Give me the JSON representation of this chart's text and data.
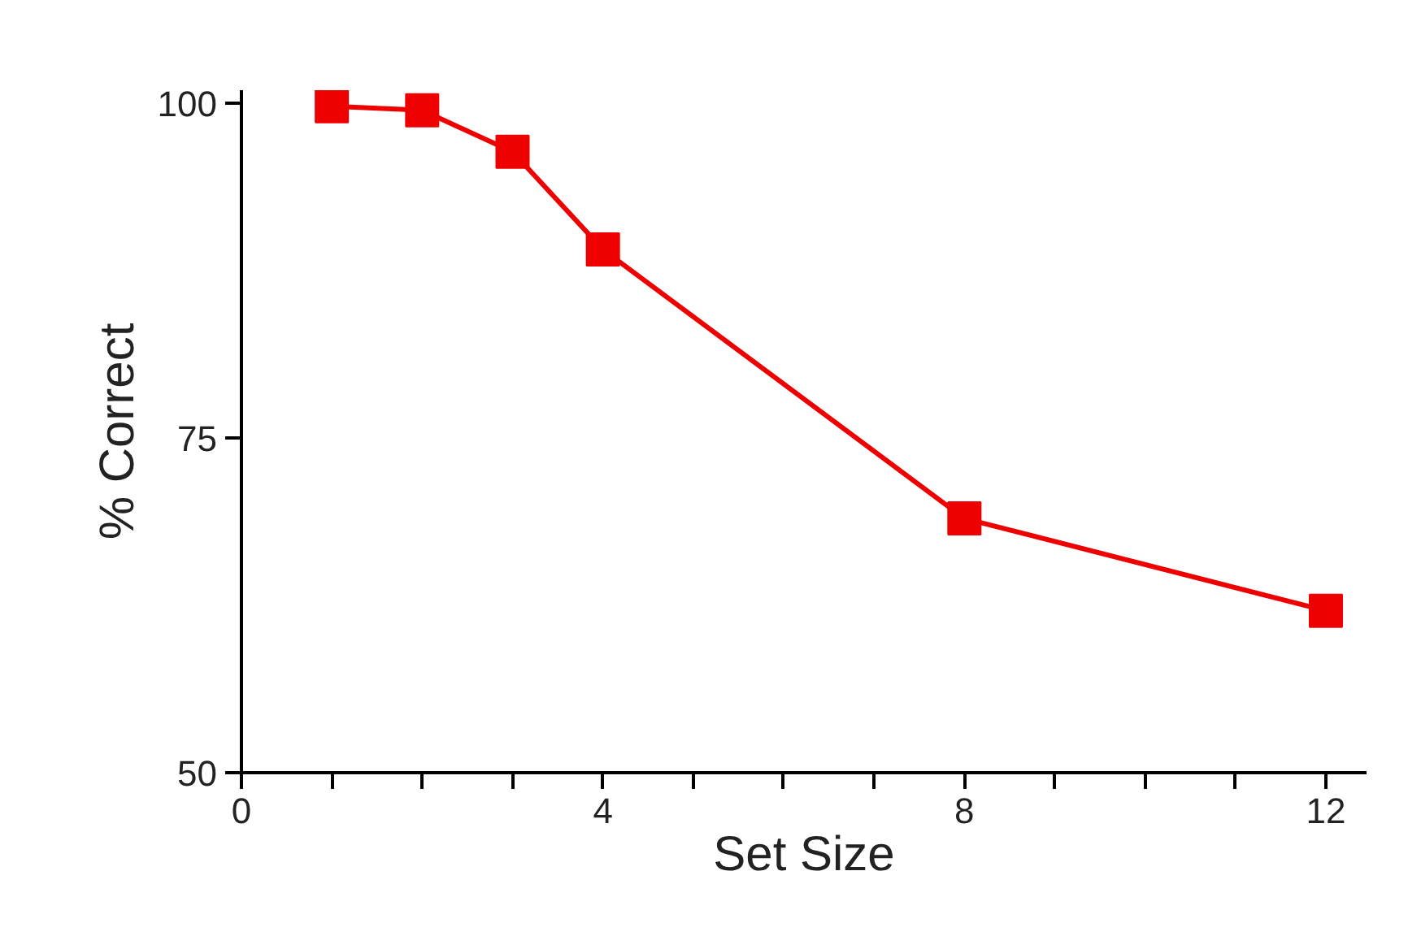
{
  "chart_data": {
    "type": "line",
    "xlabel": "Set Size",
    "ylabel": "% Correct",
    "x": [
      1,
      2,
      3,
      4,
      8,
      12
    ],
    "series": [
      {
        "color": "#ee0000",
        "values": [
          99.8,
          99.5,
          96.4,
          89.1,
          69.0,
          62.1
        ]
      }
    ],
    "xlim": [
      0,
      12.45
    ],
    "ylim": [
      50,
      101
    ],
    "xticks": [
      0,
      {
        "value": 1,
        "label": null
      },
      {
        "value": 2,
        "label": null
      },
      {
        "value": 3,
        "label": null
      },
      4,
      {
        "value": 5,
        "label": null
      },
      {
        "value": 6,
        "label": null
      },
      {
        "value": 7,
        "label": null
      },
      8,
      {
        "value": 9,
        "label": null
      },
      {
        "value": 10,
        "label": null
      },
      {
        "value": 11,
        "label": null
      },
      12
    ],
    "yticks": [
      50,
      75,
      100
    ],
    "marker": "square",
    "line_style": "solid",
    "grid": false
  }
}
